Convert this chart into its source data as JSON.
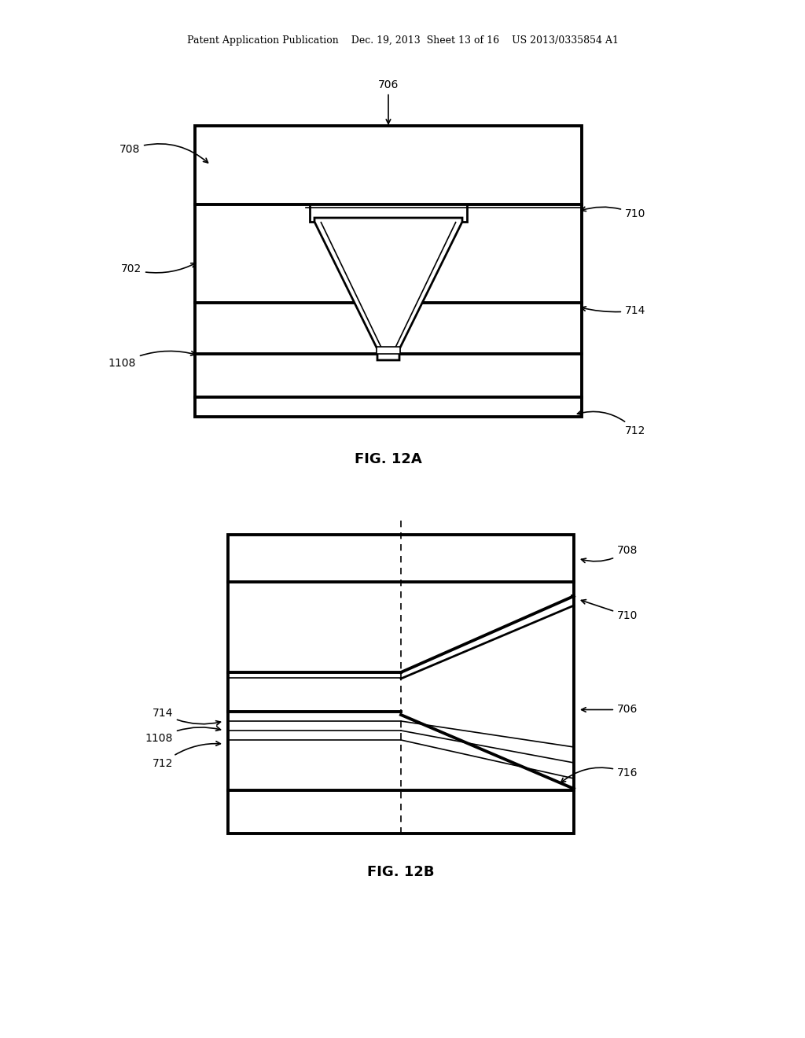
{
  "bg_color": "#ffffff",
  "line_color": "#000000",
  "header_text": "Patent Application Publication    Dec. 19, 2013  Sheet 13 of 16    US 2013/0335854 A1"
}
